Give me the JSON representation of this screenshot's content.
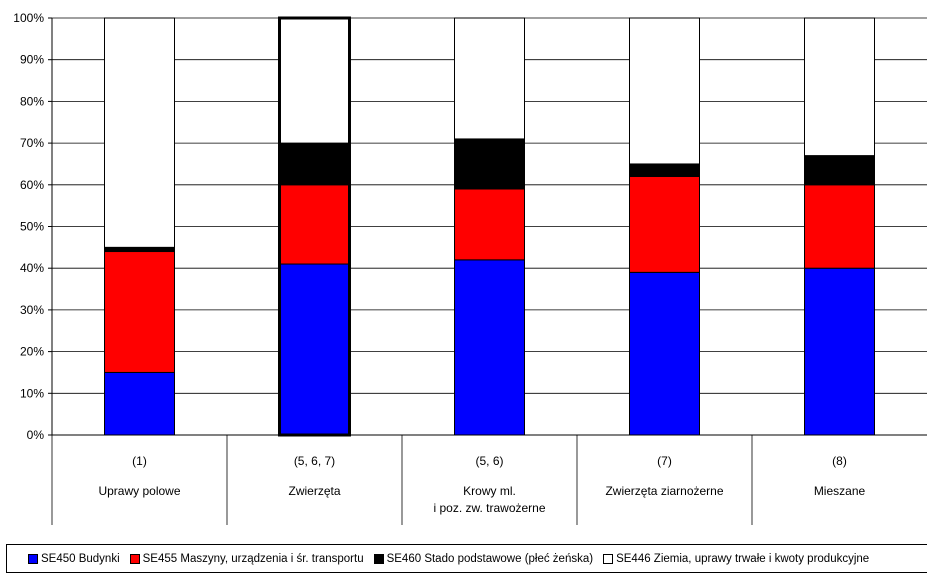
{
  "chart_data": {
    "type": "bar",
    "stacked": true,
    "percent": true,
    "ylim": [
      0,
      100
    ],
    "yticks": [
      "0%",
      "10%",
      "20%",
      "30%",
      "40%",
      "50%",
      "60%",
      "70%",
      "80%",
      "90%",
      "100%"
    ],
    "grid": true,
    "legend_position": "bottom",
    "categories": [
      {
        "code": "(1)",
        "name": [
          "Uprawy polowe"
        ]
      },
      {
        "code": "(5, 6, 7)",
        "name": [
          "Zwierzęta"
        ]
      },
      {
        "code": "(5, 6)",
        "name": [
          "Krowy ml.",
          "i poz. zw. trawożerne"
        ]
      },
      {
        "code": "(7)",
        "name": [
          "Zwierzęta ziarnożerne"
        ]
      },
      {
        "code": "(8)",
        "name": [
          "Mieszane"
        ]
      }
    ],
    "series": [
      {
        "name": "SE450 Budynki",
        "color": "#0000ff",
        "values": [
          15,
          41,
          42,
          39,
          40
        ]
      },
      {
        "name": "SE455 Maszyny, urządzenia i śr. transportu",
        "color": "#ff0000",
        "values": [
          29,
          19,
          17,
          23,
          20
        ]
      },
      {
        "name": "SE460 Stado podstawowe (płeć żeńska)",
        "color": "#000000",
        "values": [
          1,
          10,
          12,
          3,
          7
        ]
      },
      {
        "name": "SE446 Ziemia, uprawy trwałe i kwoty produkcyjne",
        "color": "#ffffff",
        "values": [
          55,
          30,
          29,
          35,
          33
        ]
      }
    ]
  }
}
